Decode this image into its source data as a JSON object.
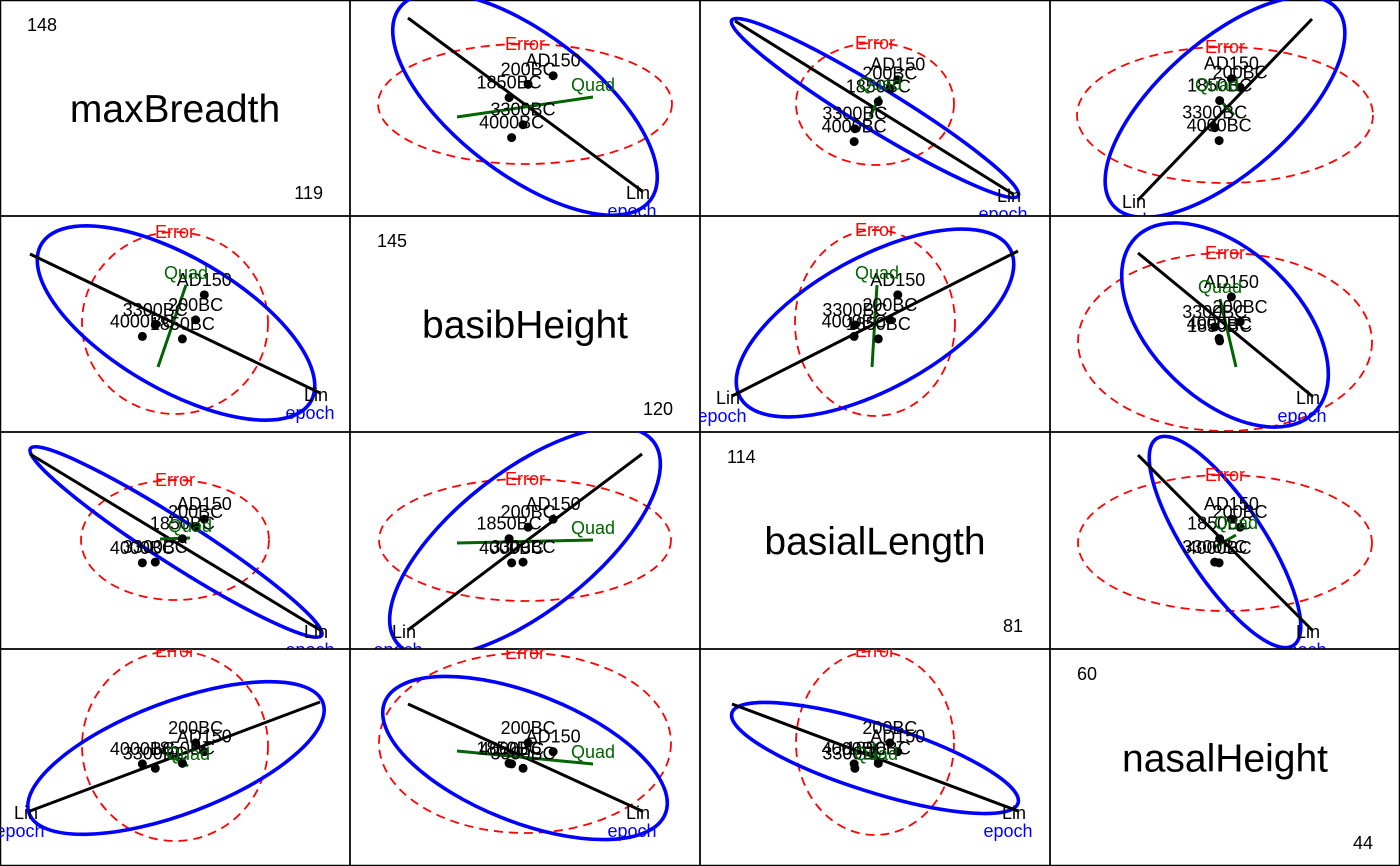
{
  "chart_data": {
    "type": "scatter",
    "layout": "pairs-matrix",
    "variables": [
      "maxBreadth",
      "basibHeight",
      "basialLength",
      "nasalHeight"
    ],
    "ranges": [
      {
        "max": "148",
        "min": "119"
      },
      {
        "max": "145",
        "min": "120"
      },
      {
        "max": "114",
        "min": "81"
      },
      {
        "max": "60",
        "min": "44"
      }
    ],
    "groups": [
      "4000BC",
      "3300BC",
      "1850BC",
      "200BC",
      "AD150"
    ],
    "group_means": {
      "maxBreadth": [
        131.37,
        132.37,
        134.47,
        135.5,
        136.17
      ],
      "basibHeight": [
        133.6,
        132.7,
        133.8,
        132.3,
        130.33
      ],
      "basialLength": [
        99.17,
        99.07,
        96.03,
        94.53,
        93.5
      ],
      "nasalHeight": [
        50.53,
        50.23,
        50.57,
        51.97,
        51.37
      ]
    },
    "ellipse_labels": {
      "effect": "epoch",
      "error": "Error"
    },
    "contrast_labels": [
      "Lin",
      "Quad"
    ],
    "colors": {
      "effect": "#0000ff",
      "error": "#ff0000",
      "lin": "#000000",
      "quad": "#006400",
      "points": "#000000"
    },
    "grid": false
  }
}
